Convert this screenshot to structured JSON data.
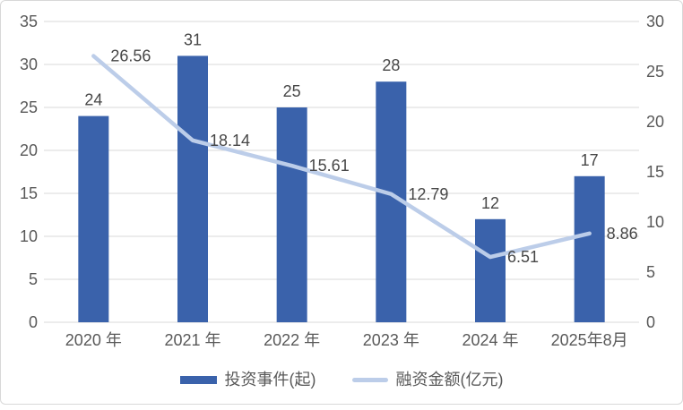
{
  "chart_data": {
    "type": "bar+line",
    "title": "",
    "categories": [
      "2020 年",
      "2021 年",
      "2022 年",
      "2023 年",
      "2024 年",
      "2025年8月"
    ],
    "series": [
      {
        "name": "投资事件(起)",
        "kind": "bar",
        "axis": "left",
        "color": "#3A62AB",
        "values": [
          24,
          31,
          25,
          28,
          12,
          17
        ]
      },
      {
        "name": "融资金额(亿元)",
        "kind": "line",
        "axis": "right",
        "color": "#BCCDE9",
        "values": [
          26.56,
          18.14,
          15.61,
          12.79,
          6.51,
          8.86
        ]
      }
    ],
    "left_axis": {
      "min": 0,
      "max": 35,
      "step": 5
    },
    "right_axis": {
      "min": 0,
      "max": 30,
      "step": 5
    },
    "grid": true,
    "legend_position": "bottom",
    "data_labels": true,
    "styles": {
      "gridline_color": "#D9D9D9",
      "text_color": "#595959",
      "data_label_color": "#474747",
      "background": "#FFFFFF",
      "border_color": "#D8D8D8"
    }
  }
}
